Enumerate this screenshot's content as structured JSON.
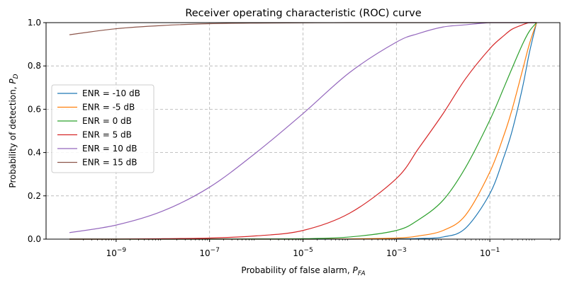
{
  "chart_data": {
    "type": "line",
    "title": "Receiver operating characteristic (ROC) curve",
    "xlabel": {
      "text": "Probability of false alarm, ",
      "symbol": "P",
      "subscript": "FA"
    },
    "ylabel": {
      "text": "Probability of detection, ",
      "symbol": "P",
      "subscript": "D"
    },
    "xscale": "log",
    "xlim": [
      1e-10,
      1
    ],
    "ylim": [
      0,
      1
    ],
    "x_ticks": [
      {
        "value": 1e-09,
        "base": "10",
        "exp": "−9"
      },
      {
        "value": 1e-07,
        "base": "10",
        "exp": "−7"
      },
      {
        "value": 1e-05,
        "base": "10",
        "exp": "−5"
      },
      {
        "value": 0.001,
        "base": "10",
        "exp": "−3"
      },
      {
        "value": 0.1,
        "base": "10",
        "exp": "−1"
      }
    ],
    "y_ticks": [
      "0.0",
      "0.2",
      "0.4",
      "0.6",
      "0.8",
      "1.0"
    ],
    "grid": true,
    "legend_position": "center-left",
    "x": [
      1e-10,
      1e-09,
      1e-08,
      1e-07,
      1e-06,
      1e-05,
      0.0001,
      0.001,
      0.003,
      0.01,
      0.03,
      0.1,
      0.2,
      0.3,
      0.5,
      0.7,
      1
    ],
    "series": [
      {
        "name": "ENR = -10 dB",
        "color": "#1f77b4",
        "values": [
          0.0,
          0.0,
          0.0,
          0.0,
          0.0,
          0.0,
          0.0,
          0.001,
          0.003,
          0.01,
          0.05,
          0.21,
          0.38,
          0.5,
          0.7,
          0.86,
          1.0
        ]
      },
      {
        "name": "ENR = -5 dB",
        "color": "#ff7f0e",
        "values": [
          0.0,
          0.0,
          0.0,
          0.0,
          0.0,
          0.0,
          0.001,
          0.005,
          0.015,
          0.04,
          0.11,
          0.31,
          0.48,
          0.6,
          0.78,
          0.9,
          1.0
        ]
      },
      {
        "name": "ENR = 0 dB",
        "color": "#2ca02c",
        "values": [
          0.0,
          0.0,
          0.0,
          0.0,
          0.001,
          0.002,
          0.01,
          0.04,
          0.09,
          0.18,
          0.33,
          0.55,
          0.7,
          0.79,
          0.9,
          0.96,
          1.0
        ]
      },
      {
        "name": "ENR = 5 dB",
        "color": "#d62728",
        "values": [
          0.0,
          0.0,
          0.002,
          0.005,
          0.015,
          0.04,
          0.12,
          0.28,
          0.42,
          0.58,
          0.74,
          0.88,
          0.94,
          0.97,
          0.99,
          1.0,
          1.0
        ]
      },
      {
        "name": "ENR = 10 dB",
        "color": "#9467bd",
        "values": [
          0.03,
          0.065,
          0.13,
          0.24,
          0.4,
          0.58,
          0.77,
          0.91,
          0.95,
          0.98,
          0.99,
          1.0,
          1.0,
          1.0,
          1.0,
          1.0,
          1.0
        ]
      },
      {
        "name": "ENR = 15 dB",
        "color": "#8c564b",
        "values": [
          0.944,
          0.972,
          0.987,
          0.995,
          0.998,
          0.999,
          1.0,
          1.0,
          1.0,
          1.0,
          1.0,
          1.0,
          1.0,
          1.0,
          1.0,
          1.0,
          1.0
        ]
      }
    ]
  }
}
